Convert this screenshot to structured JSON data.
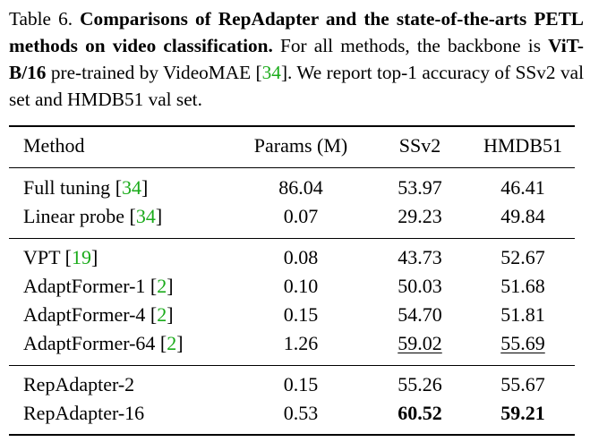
{
  "caption": {
    "label": "Table 6.",
    "bold_title": "Comparisons of RepAdapter and the state-of-the-arts PETL methods on video classification.",
    "text1": "For all methods, the backbone is",
    "backbone": "ViT-B/16",
    "text2": "pre-trained by VideoMAE [",
    "cite": "34",
    "text3": "]. We report top-1 accuracy of SSv2 val set and HMDB51 val set."
  },
  "table": {
    "headers": {
      "method": "Method",
      "params": "Params (M)",
      "ssv2": "SSv2",
      "hmdb51": "HMDB51"
    },
    "rows": [
      {
        "method": "Full tuning",
        "cite": "34",
        "params": "86.04",
        "ssv2": "53.97",
        "hmdb51": "46.41"
      },
      {
        "method": "Linear probe",
        "cite": "34",
        "params": "0.07",
        "ssv2": "29.23",
        "hmdb51": "49.84"
      },
      {
        "method": "VPT",
        "cite": "19",
        "params": "0.08",
        "ssv2": "43.73",
        "hmdb51": "52.67"
      },
      {
        "method": "AdaptFormer-1",
        "cite": "2",
        "params": "0.10",
        "ssv2": "50.03",
        "hmdb51": "51.68"
      },
      {
        "method": "AdaptFormer-4",
        "cite": "2",
        "params": "0.15",
        "ssv2": "54.70",
        "hmdb51": "51.81"
      },
      {
        "method": "AdaptFormer-64",
        "cite": "2",
        "params": "1.26",
        "ssv2": "59.02",
        "hmdb51": "55.69"
      },
      {
        "method": "RepAdapter-2",
        "params": "0.15",
        "ssv2": "55.26",
        "hmdb51": "55.67"
      },
      {
        "method": "RepAdapter-16",
        "params": "0.53",
        "ssv2": "60.52",
        "hmdb51": "59.21"
      }
    ]
  },
  "colors": {
    "citation": "#1aab1a",
    "text": "#000000"
  }
}
